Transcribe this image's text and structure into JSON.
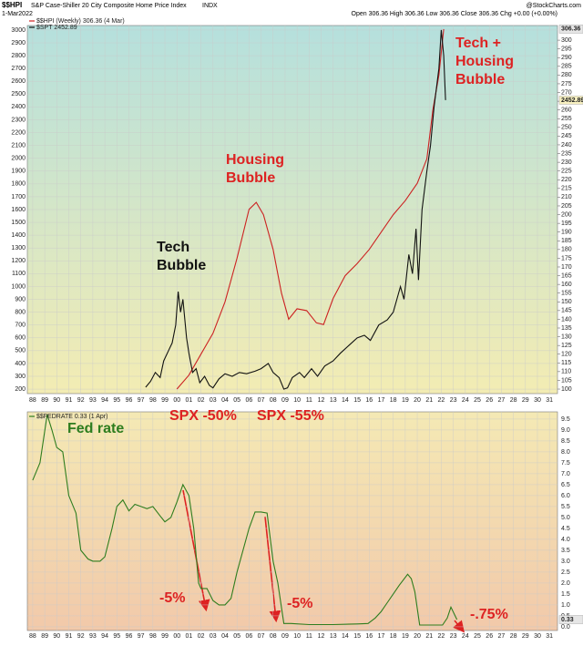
{
  "chart_data": [
    {
      "type": "line",
      "title": "S&P Case-Shiller 20 City Composite Home Price Index",
      "symbol": "$$HPI",
      "exchange": "INDX",
      "date": "1-Mar2022",
      "ohlc": "Open 306.36  High 306.36  Low 306.36  Close 306.36  Chg +0.00 (+0.00%)",
      "source": "@StockCharts.com",
      "xlim": [
        1987.55,
        2031.67
      ],
      "xticks": [
        {
          "value": 1988,
          "label": "88"
        },
        {
          "value": 1989,
          "label": "89"
        },
        {
          "value": 1990,
          "label": "90"
        },
        {
          "value": 1991,
          "label": "91"
        },
        {
          "value": 1992,
          "label": "92"
        },
        {
          "value": 1993,
          "label": "93"
        },
        {
          "value": 1994,
          "label": "94"
        },
        {
          "value": 1995,
          "label": "95"
        },
        {
          "value": 1996,
          "label": "96"
        },
        {
          "value": 1997,
          "label": "97"
        },
        {
          "value": 1998,
          "label": "98"
        },
        {
          "value": 1999,
          "label": "99"
        },
        {
          "value": 2000,
          "label": "00"
        },
        {
          "value": 2001,
          "label": "01"
        },
        {
          "value": 2002,
          "label": "02"
        },
        {
          "value": 2003,
          "label": "03"
        },
        {
          "value": 2004,
          "label": "04"
        },
        {
          "value": 2005,
          "label": "05"
        },
        {
          "value": 2006,
          "label": "06"
        },
        {
          "value": 2007,
          "label": "07"
        },
        {
          "value": 2008,
          "label": "08"
        },
        {
          "value": 2009,
          "label": "09"
        },
        {
          "value": 2010,
          "label": "10"
        },
        {
          "value": 2011,
          "label": "11"
        },
        {
          "value": 2012,
          "label": "12"
        },
        {
          "value": 2013,
          "label": "13"
        },
        {
          "value": 2014,
          "label": "14"
        },
        {
          "value": 2015,
          "label": "15"
        },
        {
          "value": 2016,
          "label": "16"
        },
        {
          "value": 2017,
          "label": "17"
        },
        {
          "value": 2018,
          "label": "18"
        },
        {
          "value": 2019,
          "label": "19"
        },
        {
          "value": 2020,
          "label": "20"
        },
        {
          "value": 2021,
          "label": "21"
        },
        {
          "value": 2022,
          "label": "22"
        },
        {
          "value": 2023,
          "label": "23"
        },
        {
          "value": 2024,
          "label": "24"
        },
        {
          "value": 2025,
          "label": "25"
        },
        {
          "value": 2026,
          "label": "26"
        },
        {
          "value": 2027,
          "label": "27"
        },
        {
          "value": 2028,
          "label": "28"
        },
        {
          "value": 2029,
          "label": "29"
        },
        {
          "value": 2030,
          "label": "30"
        },
        {
          "value": 2031,
          "label": "31"
        }
      ],
      "ylim": [
        165,
        3035
      ],
      "yticks": [
        200,
        300,
        400,
        500,
        600,
        700,
        800,
        900,
        1000,
        1100,
        1200,
        1300,
        1400,
        1500,
        1600,
        1700,
        1800,
        1900,
        2000,
        2100,
        2200,
        2300,
        2400,
        2500,
        2600,
        2700,
        2800,
        2900,
        3000
      ],
      "y2lim": [
        97.4,
        308.4
      ],
      "y2ticks": [
        100,
        105,
        110,
        115,
        120,
        125,
        130,
        135,
        140,
        145,
        150,
        155,
        160,
        165,
        170,
        175,
        180,
        185,
        190,
        195,
        200,
        205,
        210,
        215,
        220,
        225,
        230,
        235,
        240,
        245,
        250,
        255,
        260,
        265,
        270,
        275,
        280,
        285,
        290,
        295,
        300
      ],
      "grid": true,
      "series": [
        {
          "name": "$$HPI (Weekly) 306.36 (4 Mar)",
          "color": "#cc2222",
          "axis": "y2",
          "x": [
            2000.0,
            2001,
            2002,
            2003,
            2004,
            2005,
            2006,
            2006.6,
            2007.2,
            2008,
            2008.7,
            2009.3,
            2010,
            2010.8,
            2011.6,
            2012.2,
            2013,
            2014,
            2015,
            2016,
            2017,
            2018,
            2019,
            2020,
            2020.8,
            2021.3,
            2021.8,
            2022.2
          ],
          "values": [
            100,
            108,
            120,
            132,
            150,
            175,
            203,
            207,
            200,
            180,
            155,
            140,
            146,
            145,
            138,
            137,
            152,
            165,
            172,
            180,
            190,
            200,
            208,
            218,
            232,
            260,
            280,
            306.36
          ]
        },
        {
          "name": "$SPT 2452.89",
          "color": "#111111",
          "x": [
            1997.4,
            1997.8,
            1998.2,
            1998.6,
            1998.9,
            1999.3,
            1999.6,
            1999.9,
            2000.1,
            2000.3,
            2000.5,
            2000.8,
            2001.0,
            2001.3,
            2001.6,
            2001.9,
            2002.3,
            2002.7,
            2003.0,
            2003.5,
            2004.0,
            2004.6,
            2005.2,
            2005.8,
            2006.5,
            2007.0,
            2007.6,
            2008.0,
            2008.5,
            2008.9,
            2009.2,
            2009.6,
            2010.2,
            2010.6,
            2011.2,
            2011.7,
            2012.3,
            2013.0,
            2013.6,
            2014.3,
            2015.0,
            2015.6,
            2016.1,
            2016.8,
            2017.5,
            2018.0,
            2018.6,
            2018.9,
            2019.3,
            2019.6,
            2019.9,
            2020.1,
            2020.4,
            2020.8,
            2021.1,
            2021.4,
            2021.8,
            2022.0,
            2022.2,
            2022.35
          ],
          "values": [
            215,
            260,
            330,
            290,
            420,
            500,
            560,
            700,
            960,
            800,
            900,
            600,
            480,
            330,
            360,
            250,
            300,
            230,
            210,
            280,
            320,
            300,
            330,
            320,
            340,
            360,
            400,
            330,
            290,
            200,
            210,
            290,
            330,
            290,
            360,
            300,
            380,
            420,
            480,
            540,
            600,
            620,
            580,
            700,
            740,
            800,
            1000,
            900,
            1250,
            1100,
            1450,
            1050,
            1600,
            1900,
            2100,
            2400,
            2700,
            3000,
            2800,
            2452.89
          ]
        }
      ],
      "annotations": [
        {
          "lines": [
            "Tech",
            "Bubble"
          ],
          "color": "#111111"
        },
        {
          "lines": [
            "Housing",
            "Bubble"
          ],
          "color": "#dd2222"
        },
        {
          "lines": [
            "Tech +",
            "Housing",
            "Bubble"
          ],
          "color": "#dd2222"
        }
      ]
    },
    {
      "type": "line",
      "y_axis_side": "right",
      "xlim": [
        1987.55,
        2031.67
      ],
      "xticks": [
        {
          "value": 1988,
          "label": "88"
        },
        {
          "value": 1989,
          "label": "89"
        },
        {
          "value": 1990,
          "label": "90"
        },
        {
          "value": 1991,
          "label": "91"
        },
        {
          "value": 1992,
          "label": "92"
        },
        {
          "value": 1993,
          "label": "93"
        },
        {
          "value": 1994,
          "label": "94"
        },
        {
          "value": 1995,
          "label": "95"
        },
        {
          "value": 1996,
          "label": "96"
        },
        {
          "value": 1997,
          "label": "97"
        },
        {
          "value": 1998,
          "label": "98"
        },
        {
          "value": 1999,
          "label": "99"
        },
        {
          "value": 2000,
          "label": "00"
        },
        {
          "value": 2001,
          "label": "01"
        },
        {
          "value": 2002,
          "label": "02"
        },
        {
          "value": 2003,
          "label": "03"
        },
        {
          "value": 2004,
          "label": "04"
        },
        {
          "value": 2005,
          "label": "05"
        },
        {
          "value": 2006,
          "label": "06"
        },
        {
          "value": 2007,
          "label": "07"
        },
        {
          "value": 2008,
          "label": "08"
        },
        {
          "value": 2009,
          "label": "09"
        },
        {
          "value": 2010,
          "label": "10"
        },
        {
          "value": 2011,
          "label": "11"
        },
        {
          "value": 2012,
          "label": "12"
        },
        {
          "value": 2013,
          "label": "13"
        },
        {
          "value": 2014,
          "label": "14"
        },
        {
          "value": 2015,
          "label": "15"
        },
        {
          "value": 2016,
          "label": "16"
        },
        {
          "value": 2017,
          "label": "17"
        },
        {
          "value": 2018,
          "label": "18"
        },
        {
          "value": 2019,
          "label": "19"
        },
        {
          "value": 2020,
          "label": "20"
        },
        {
          "value": 2021,
          "label": "21"
        },
        {
          "value": 2022,
          "label": "22"
        },
        {
          "value": 2023,
          "label": "23"
        },
        {
          "value": 2024,
          "label": "24"
        },
        {
          "value": 2025,
          "label": "25"
        },
        {
          "value": 2026,
          "label": "26"
        },
        {
          "value": 2027,
          "label": "27"
        },
        {
          "value": 2028,
          "label": "28"
        },
        {
          "value": 2029,
          "label": "29"
        },
        {
          "value": 2030,
          "label": "30"
        },
        {
          "value": 2031,
          "label": "31"
        }
      ],
      "ylim": [
        -0.17,
        9.83
      ],
      "yticks": [
        {
          "value": 0,
          "label": "0.0"
        },
        {
          "value": 0.5,
          "label": "0.5"
        },
        {
          "value": 1,
          "label": "1.0"
        },
        {
          "value": 1.5,
          "label": "1.5"
        },
        {
          "value": 2,
          "label": "2.0"
        },
        {
          "value": 2.5,
          "label": "2.5"
        },
        {
          "value": 3,
          "label": "3.0"
        },
        {
          "value": 3.5,
          "label": "3.5"
        },
        {
          "value": 4,
          "label": "4.0"
        },
        {
          "value": 4.5,
          "label": "4.5"
        },
        {
          "value": 5,
          "label": "5.0"
        },
        {
          "value": 5.5,
          "label": "5.5"
        },
        {
          "value": 6,
          "label": "6.0"
        },
        {
          "value": 6.5,
          "label": "6.5"
        },
        {
          "value": 7,
          "label": "7.0"
        },
        {
          "value": 7.5,
          "label": "7.5"
        },
        {
          "value": 8,
          "label": "8.0"
        },
        {
          "value": 8.5,
          "label": "8.5"
        },
        {
          "value": 9,
          "label": "9.0"
        },
        {
          "value": 9.5,
          "label": "9.5"
        }
      ],
      "grid": true,
      "series": [
        {
          "name": "$$FEDRATE 0.33 (1 Apr)",
          "color": "#2e7d1e",
          "x": [
            1988,
            1988.6,
            1989.2,
            1989.6,
            1990,
            1990.5,
            1991,
            1991.6,
            1992,
            1992.6,
            1993,
            1993.6,
            1994,
            1994.6,
            1995,
            1995.5,
            1996,
            1996.5,
            1997,
            1997.5,
            1998,
            1998.7,
            1999,
            1999.5,
            2000,
            2000.5,
            2001,
            2001.4,
            2001.8,
            2002,
            2002.5,
            2003,
            2003.5,
            2004,
            2004.5,
            2005,
            2005.5,
            2006,
            2006.5,
            2007,
            2007.5,
            2008,
            2008.4,
            2008.9,
            2009.5,
            2011,
            2013,
            2015,
            2015.9,
            2016.5,
            2017,
            2017.5,
            2018,
            2018.5,
            2019.2,
            2019.5,
            2019.8,
            2020.2,
            2021,
            2022.1,
            2022.5,
            2022.8,
            2023.3
          ],
          "values": [
            6.7,
            7.5,
            9.7,
            9.0,
            8.2,
            8.0,
            6.0,
            5.2,
            3.5,
            3.1,
            3.0,
            3.0,
            3.2,
            4.5,
            5.5,
            5.8,
            5.3,
            5.6,
            5.5,
            5.4,
            5.5,
            5.0,
            4.8,
            5.0,
            5.7,
            6.5,
            6.0,
            4.5,
            2.0,
            1.75,
            1.75,
            1.2,
            1.0,
            1.0,
            1.3,
            2.5,
            3.5,
            4.5,
            5.25,
            5.25,
            5.2,
            3.0,
            2.0,
            0.15,
            0.15,
            0.1,
            0.1,
            0.13,
            0.15,
            0.4,
            0.7,
            1.1,
            1.5,
            1.9,
            2.4,
            2.2,
            1.6,
            0.08,
            0.08,
            0.08,
            0.4,
            0.9,
            0.33
          ]
        }
      ],
      "annotations": [
        {
          "lines": [
            "Fed rate"
          ],
          "color": "#2e7d1e"
        },
        {
          "lines": [
            "SPX -50%"
          ],
          "color": "#dd2222"
        },
        {
          "lines": [
            "SPX -55%"
          ],
          "color": "#dd2222"
        },
        {
          "lines": [
            "-5%"
          ],
          "color": "#dd2222"
        },
        {
          "lines": [
            "-5%"
          ],
          "color": "#dd2222"
        },
        {
          "lines": [
            "-.75%"
          ],
          "color": "#dd2222"
        }
      ]
    }
  ]
}
